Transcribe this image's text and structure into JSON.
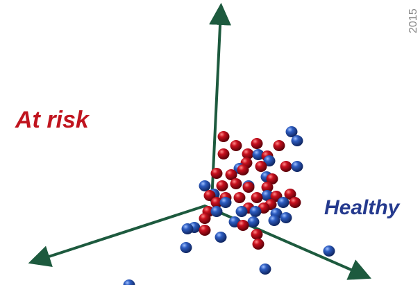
{
  "labels": {
    "at_risk": "At risk",
    "healthy": "Healthy",
    "year": "2015"
  }
}
